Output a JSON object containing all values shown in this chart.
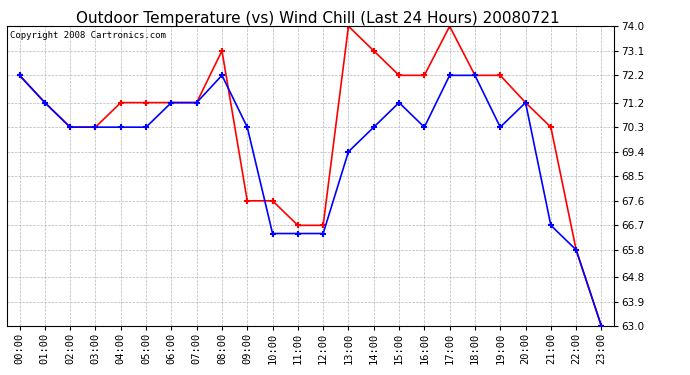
{
  "title": "Outdoor Temperature (vs) Wind Chill (Last 24 Hours) 20080721",
  "copyright": "Copyright 2008 Cartronics.com",
  "hours": [
    "00:00",
    "01:00",
    "02:00",
    "03:00",
    "04:00",
    "05:00",
    "06:00",
    "07:00",
    "08:00",
    "09:00",
    "10:00",
    "11:00",
    "12:00",
    "13:00",
    "14:00",
    "15:00",
    "16:00",
    "17:00",
    "18:00",
    "19:00",
    "20:00",
    "21:00",
    "22:00",
    "23:00"
  ],
  "temp": [
    72.2,
    71.2,
    70.3,
    70.3,
    71.2,
    71.2,
    71.2,
    71.2,
    73.1,
    67.6,
    67.6,
    66.7,
    66.7,
    74.0,
    73.1,
    72.2,
    72.2,
    74.0,
    72.2,
    72.2,
    71.2,
    70.3,
    65.8,
    63.0
  ],
  "wind_chill": [
    72.2,
    71.2,
    70.3,
    70.3,
    70.3,
    70.3,
    71.2,
    71.2,
    72.2,
    70.3,
    66.4,
    66.4,
    66.4,
    69.4,
    70.3,
    71.2,
    70.3,
    72.2,
    72.2,
    70.3,
    71.2,
    66.7,
    65.8,
    63.0
  ],
  "ylim": [
    63.0,
    74.0
  ],
  "yticks": [
    63.0,
    63.9,
    64.8,
    65.8,
    66.7,
    67.6,
    68.5,
    69.4,
    70.3,
    71.2,
    72.2,
    73.1,
    74.0
  ],
  "temp_color": "#ff0000",
  "wind_chill_color": "#0000ff",
  "bg_color": "#ffffff",
  "grid_color": "#b0b0b0",
  "title_fontsize": 11,
  "copyright_fontsize": 6.5,
  "axis_fontsize": 7.5
}
